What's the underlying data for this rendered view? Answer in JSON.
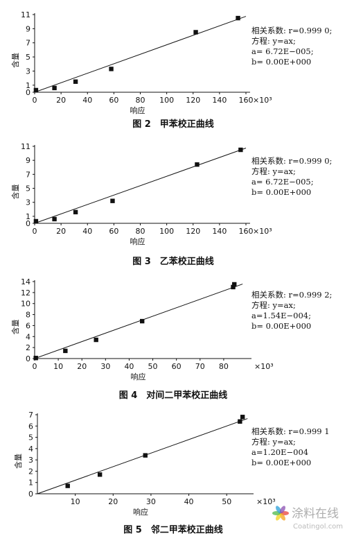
{
  "chart_data": [
    {
      "type": "scatter",
      "caption": "图 2　甲苯校正曲线",
      "xlabel": "响应",
      "ylabel": "含量",
      "x_unit": "×10³",
      "xlim": [
        0,
        160
      ],
      "ylim": [
        0,
        11
      ],
      "xticks": [
        0,
        20,
        40,
        60,
        80,
        100,
        120,
        140,
        160
      ],
      "yticks": [
        0,
        1,
        3,
        5,
        7,
        9,
        11
      ],
      "points": [
        {
          "x": 1,
          "y": 0.3
        },
        {
          "x": 15,
          "y": 0.6
        },
        {
          "x": 31,
          "y": 1.5
        },
        {
          "x": 58,
          "y": 3.3
        },
        {
          "x": 122,
          "y": 8.5
        },
        {
          "x": 154,
          "y": 10.5
        }
      ],
      "fit_line": {
        "x": [
          0,
          160
        ],
        "y": [
          0,
          10.75
        ]
      },
      "equation": [
        "相关系数: r=0.999 0;",
        "方程: y=ax;",
        "a= 6.72E−005;",
        "b= 0.00E+000"
      ]
    },
    {
      "type": "scatter",
      "caption": "图 3　乙苯校正曲线",
      "xlabel": "响应",
      "ylabel": "含量",
      "x_unit": "×10³",
      "xlim": [
        0,
        160
      ],
      "ylim": [
        0,
        11
      ],
      "xticks": [
        0,
        20,
        40,
        60,
        80,
        100,
        120,
        140,
        160
      ],
      "yticks": [
        0,
        1,
        3,
        5,
        7,
        9,
        11
      ],
      "points": [
        {
          "x": 1,
          "y": 0.3
        },
        {
          "x": 15,
          "y": 0.6
        },
        {
          "x": 31,
          "y": 1.6
        },
        {
          "x": 59,
          "y": 3.2
        },
        {
          "x": 123,
          "y": 8.4
        },
        {
          "x": 156,
          "y": 10.5
        }
      ],
      "fit_line": {
        "x": [
          0,
          160
        ],
        "y": [
          0,
          10.75
        ]
      },
      "equation": [
        "相关系数: r=0.999 0;",
        "方程: y=ax;",
        "a= 6.72E−005;",
        "b= 0.00E+000"
      ]
    },
    {
      "type": "scatter",
      "caption": "图 4　对间二甲苯校正曲线",
      "xlabel": "响应",
      "ylabel": "含量",
      "x_unit": "×10³",
      "xlim": [
        0,
        90
      ],
      "ylim": [
        0,
        14
      ],
      "xticks": [
        0,
        10,
        20,
        30,
        40,
        50,
        60,
        70,
        80
      ],
      "yticks": [
        0,
        2,
        4,
        6,
        8,
        10,
        12,
        14
      ],
      "points": [
        {
          "x": 0.5,
          "y": 0.1
        },
        {
          "x": 13,
          "y": 1.4
        },
        {
          "x": 26,
          "y": 3.4
        },
        {
          "x": 45.5,
          "y": 6.8
        },
        {
          "x": 84,
          "y": 13.0
        },
        {
          "x": 84.5,
          "y": 13.5
        }
      ],
      "fit_line": {
        "x": [
          0,
          88
        ],
        "y": [
          0,
          13.55
        ]
      },
      "equation": [
        "相关系数: r=0.999 2;",
        "方程: y=ax;",
        "a=1.54E−004;",
        "b= 0.00E+000"
      ]
    },
    {
      "type": "scatter",
      "caption": "图 5　邻二甲苯校正曲线",
      "xlabel": "响应",
      "ylabel": "含量",
      "x_unit": "×10³",
      "xlim": [
        0,
        56
      ],
      "ylim": [
        0,
        7
      ],
      "xticks": [
        10,
        20,
        30,
        40,
        50
      ],
      "yticks": [
        0,
        1,
        2,
        3,
        4,
        5,
        6,
        7
      ],
      "points": [
        {
          "x": 8,
          "y": 0.7
        },
        {
          "x": 16.5,
          "y": 1.7
        },
        {
          "x": 28.5,
          "y": 3.4
        },
        {
          "x": 53.5,
          "y": 6.4
        },
        {
          "x": 54.2,
          "y": 6.8
        }
      ],
      "fit_line": {
        "x": [
          0,
          55.5
        ],
        "y": [
          0,
          6.66
        ]
      },
      "equation": [
        "相关系数: r=0.999 1",
        "方程: y=ax;",
        "a=1.20E−004",
        "b= 0.00E+000"
      ]
    }
  ],
  "watermark": {
    "name": "涂料在线",
    "url": "Coatingol.com"
  }
}
